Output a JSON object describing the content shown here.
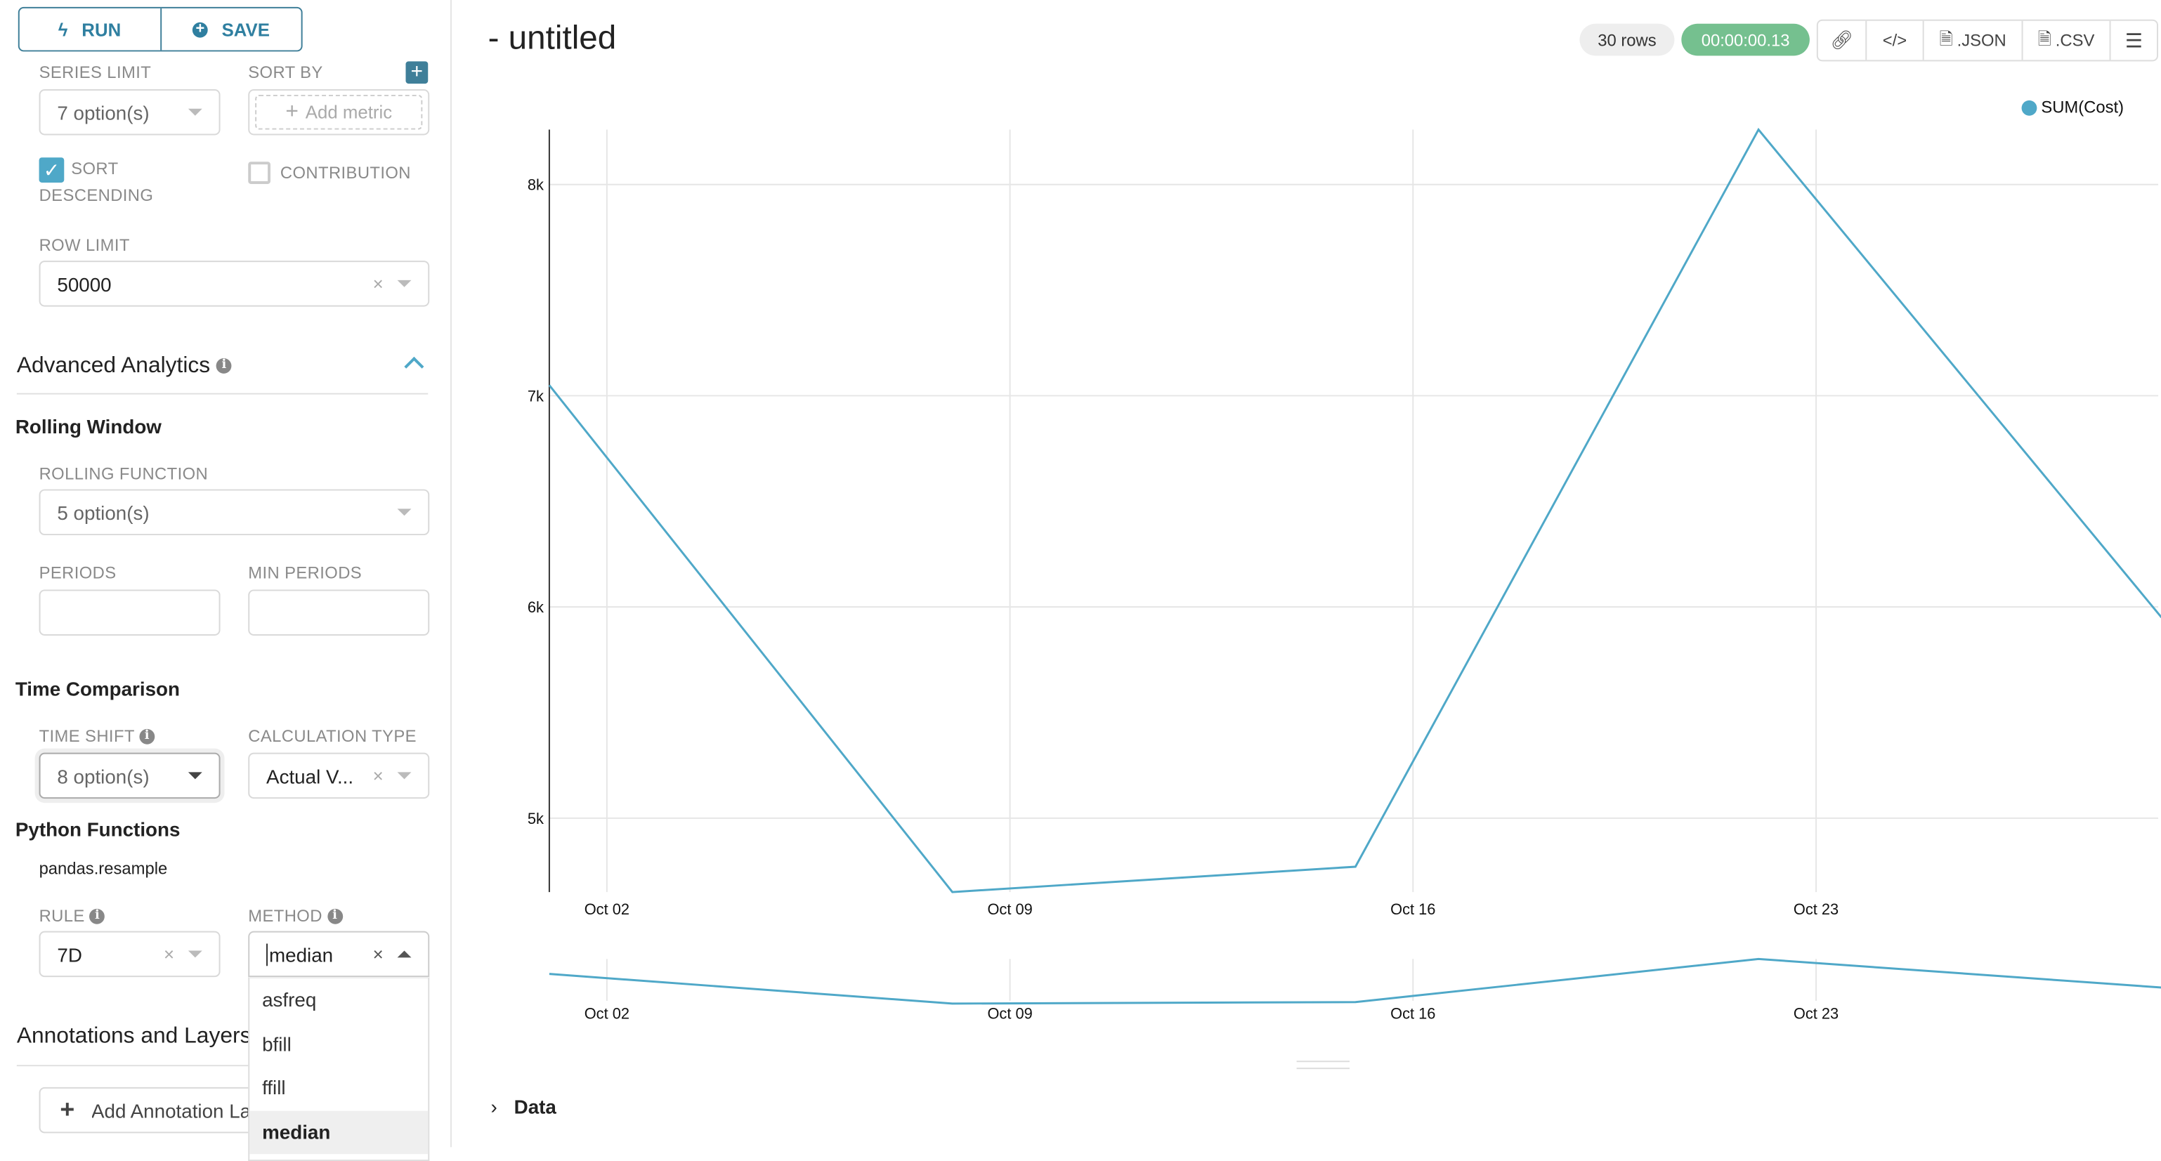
{
  "toolbar": {
    "run_label": "RUN",
    "save_label": "SAVE"
  },
  "query": {
    "series_limit": {
      "label": "SERIES LIMIT",
      "value": "7 option(s)"
    },
    "sort_by": {
      "label": "SORT BY",
      "placeholder": "Add metric"
    },
    "sort_descending": {
      "label_line1": "SORT",
      "label_line2": "DESCENDING",
      "checked": true
    },
    "contribution": {
      "label": "CONTRIBUTION",
      "checked": false
    },
    "row_limit": {
      "label": "ROW LIMIT",
      "value": "50000"
    }
  },
  "advanced": {
    "title": "Advanced Analytics",
    "rolling": {
      "title": "Rolling Window",
      "function_label": "ROLLING FUNCTION",
      "function_value": "5 option(s)",
      "periods_label": "PERIODS",
      "periods_value": "",
      "min_periods_label": "MIN PERIODS",
      "min_periods_value": ""
    },
    "time_comparison": {
      "title": "Time Comparison",
      "time_shift_label": "TIME SHIFT",
      "time_shift_value": "8 option(s)",
      "calc_type_label": "CALCULATION TYPE",
      "calc_type_value": "Actual V..."
    },
    "python": {
      "title": "Python Functions",
      "subtitle": "pandas.resample",
      "rule_label": "RULE",
      "rule_value": "7D",
      "method_label": "METHOD",
      "method_value": "median",
      "method_options": [
        "asfreq",
        "bfill",
        "ffill",
        "median"
      ],
      "method_selected": "median"
    }
  },
  "annotations": {
    "title": "Annotations and Layers",
    "add_button": "Add Annotation Layer"
  },
  "header": {
    "title": "- untitled",
    "rows_badge": "30 rows",
    "timer": "00:00:00.13",
    "json_label": ".JSON",
    "csv_label": ".CSV"
  },
  "colors": {
    "accent": "#2f7fa0",
    "series": "#4fa8c8",
    "timer": "#75c08f",
    "checkbox": "#4fa8c8"
  },
  "data_section": {
    "label": "Data"
  },
  "chart_data": {
    "type": "line",
    "legend": [
      "SUM(Cost)"
    ],
    "legend_position": "top-right",
    "x_ticks": [
      "Oct 02",
      "Oct 09",
      "Oct 16",
      "Oct 23"
    ],
    "y_ticks": [
      "5k",
      "6k",
      "7k",
      "8k"
    ],
    "grid": true,
    "has_brush": true,
    "series": [
      {
        "name": "SUM(Cost)",
        "x": [
          "2023-10-01",
          "2023-10-08",
          "2023-10-15",
          "2023-10-22",
          "2023-10-29"
        ],
        "values": [
          7050,
          4650,
          4770,
          8260,
          5950
        ]
      }
    ],
    "ylim": [
      4650,
      8260
    ]
  }
}
